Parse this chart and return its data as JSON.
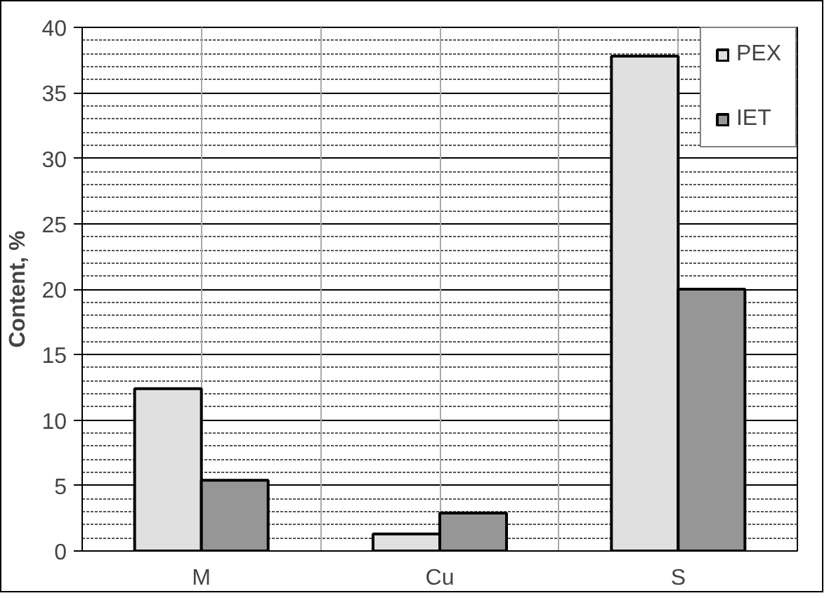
{
  "chart_data": {
    "type": "bar",
    "ylabel": "Content, %",
    "categories": [
      "M",
      "Cu",
      "S"
    ],
    "series": [
      {
        "name": "PEX",
        "color": "#e0e0e0",
        "values": [
          12.4,
          1.3,
          37.8
        ]
      },
      {
        "name": "IET",
        "color": "#969696",
        "values": [
          5.4,
          2.9,
          20.0
        ]
      }
    ],
    "ylim": [
      0,
      40
    ],
    "yticks": [
      0,
      {
        "value": 1,
        "label": null
      },
      {
        "value": 2,
        "label": null
      },
      {
        "value": 3,
        "label": null
      },
      {
        "value": 4,
        "label": null
      },
      5,
      {
        "value": 6,
        "label": null
      },
      {
        "value": 7,
        "label": null
      },
      {
        "value": 8,
        "label": null
      },
      {
        "value": 9,
        "label": null
      },
      10,
      {
        "value": 11,
        "label": null
      },
      {
        "value": 12,
        "label": null
      },
      {
        "value": 13,
        "label": null
      },
      {
        "value": 14,
        "label": null
      },
      15,
      {
        "value": 16,
        "label": null
      },
      {
        "value": 17,
        "label": null
      },
      {
        "value": 18,
        "label": null
      },
      {
        "value": 19,
        "label": null
      },
      20,
      {
        "value": 21,
        "label": null
      },
      {
        "value": 22,
        "label": null
      },
      {
        "value": 23,
        "label": null
      },
      {
        "value": 24,
        "label": null
      },
      25,
      {
        "value": 26,
        "label": null
      },
      {
        "value": 27,
        "label": null
      },
      {
        "value": 28,
        "label": null
      },
      {
        "value": 29,
        "label": null
      },
      30,
      {
        "value": 31,
        "label": null
      },
      {
        "value": 32,
        "label": null
      },
      {
        "value": 33,
        "label": null
      },
      {
        "value": 34,
        "label": null
      },
      35,
      {
        "value": 36,
        "label": null
      },
      {
        "value": 37,
        "label": null
      },
      {
        "value": 38,
        "label": null
      },
      {
        "value": 39,
        "label": null
      },
      40
    ],
    "grid": true,
    "legend": "top right"
  }
}
